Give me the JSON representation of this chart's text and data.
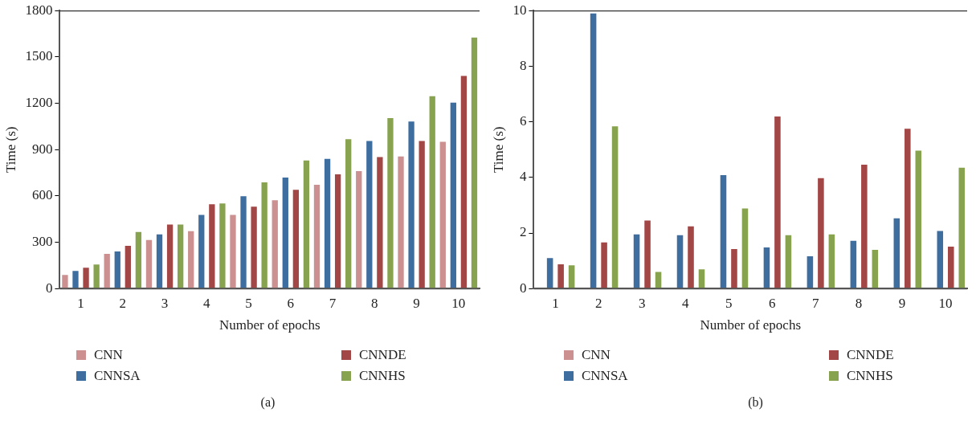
{
  "chart_data": [
    {
      "type": "bar",
      "xlabel": "Number of epochs",
      "ylabel": "Time (s)",
      "categories": [
        "1",
        "2",
        "3",
        "4",
        "5",
        "6",
        "7",
        "8",
        "9",
        "10"
      ],
      "ylim": [
        0,
        1800
      ],
      "yticks": [
        0,
        300,
        600,
        900,
        1200,
        1500,
        1800
      ],
      "grid": false,
      "legend": "bottom",
      "annotations": [
        "(a)"
      ],
      "series": [
        {
          "name": "CNN",
          "color": "#cc9090",
          "values": [
            88,
            225,
            314,
            372,
            477,
            572,
            672,
            761,
            856,
            951
          ]
        },
        {
          "name": "CNNSA",
          "color": "#3e6e9f",
          "values": [
            114,
            240,
            351,
            477,
            598,
            719,
            840,
            956,
            1082,
            1204
          ]
        },
        {
          "name": "CNNDE",
          "color": "#a24646",
          "values": [
            135,
            277,
            414,
            546,
            530,
            640,
            740,
            851,
            956,
            1377
          ]
        },
        {
          "name": "CNNHS",
          "color": "#88a350",
          "values": [
            156,
            367,
            414,
            551,
            688,
            830,
            967,
            1104,
            1246,
            1625
          ]
        }
      ]
    },
    {
      "type": "bar",
      "xlabel": "Number of epochs",
      "ylabel": "Time (s)",
      "categories": [
        "1",
        "2",
        "3",
        "4",
        "5",
        "6",
        "7",
        "8",
        "9",
        "10"
      ],
      "ylim": [
        0,
        10
      ],
      "yticks": [
        0,
        2,
        4,
        6,
        8,
        10
      ],
      "grid": false,
      "legend": "bottom",
      "annotations": [
        "(b)"
      ],
      "series": [
        {
          "name": "CNN",
          "color": "#cc9090",
          "values": [
            null,
            null,
            null,
            null,
            null,
            null,
            null,
            null,
            null,
            null
          ]
        },
        {
          "name": "CNNSA",
          "color": "#3e6e9f",
          "values": [
            1.1,
            9.9,
            1.95,
            1.92,
            4.08,
            1.48,
            1.16,
            1.72,
            2.53,
            2.07
          ]
        },
        {
          "name": "CNNDE",
          "color": "#a24646",
          "values": [
            0.87,
            1.66,
            2.45,
            2.24,
            1.42,
            6.19,
            3.97,
            4.46,
            5.75,
            1.51
          ]
        },
        {
          "name": "CNNHS",
          "color": "#88a350",
          "values": [
            0.84,
            5.84,
            0.6,
            0.69,
            2.88,
            1.92,
            1.95,
            1.39,
            4.96,
            4.35
          ]
        }
      ]
    }
  ]
}
